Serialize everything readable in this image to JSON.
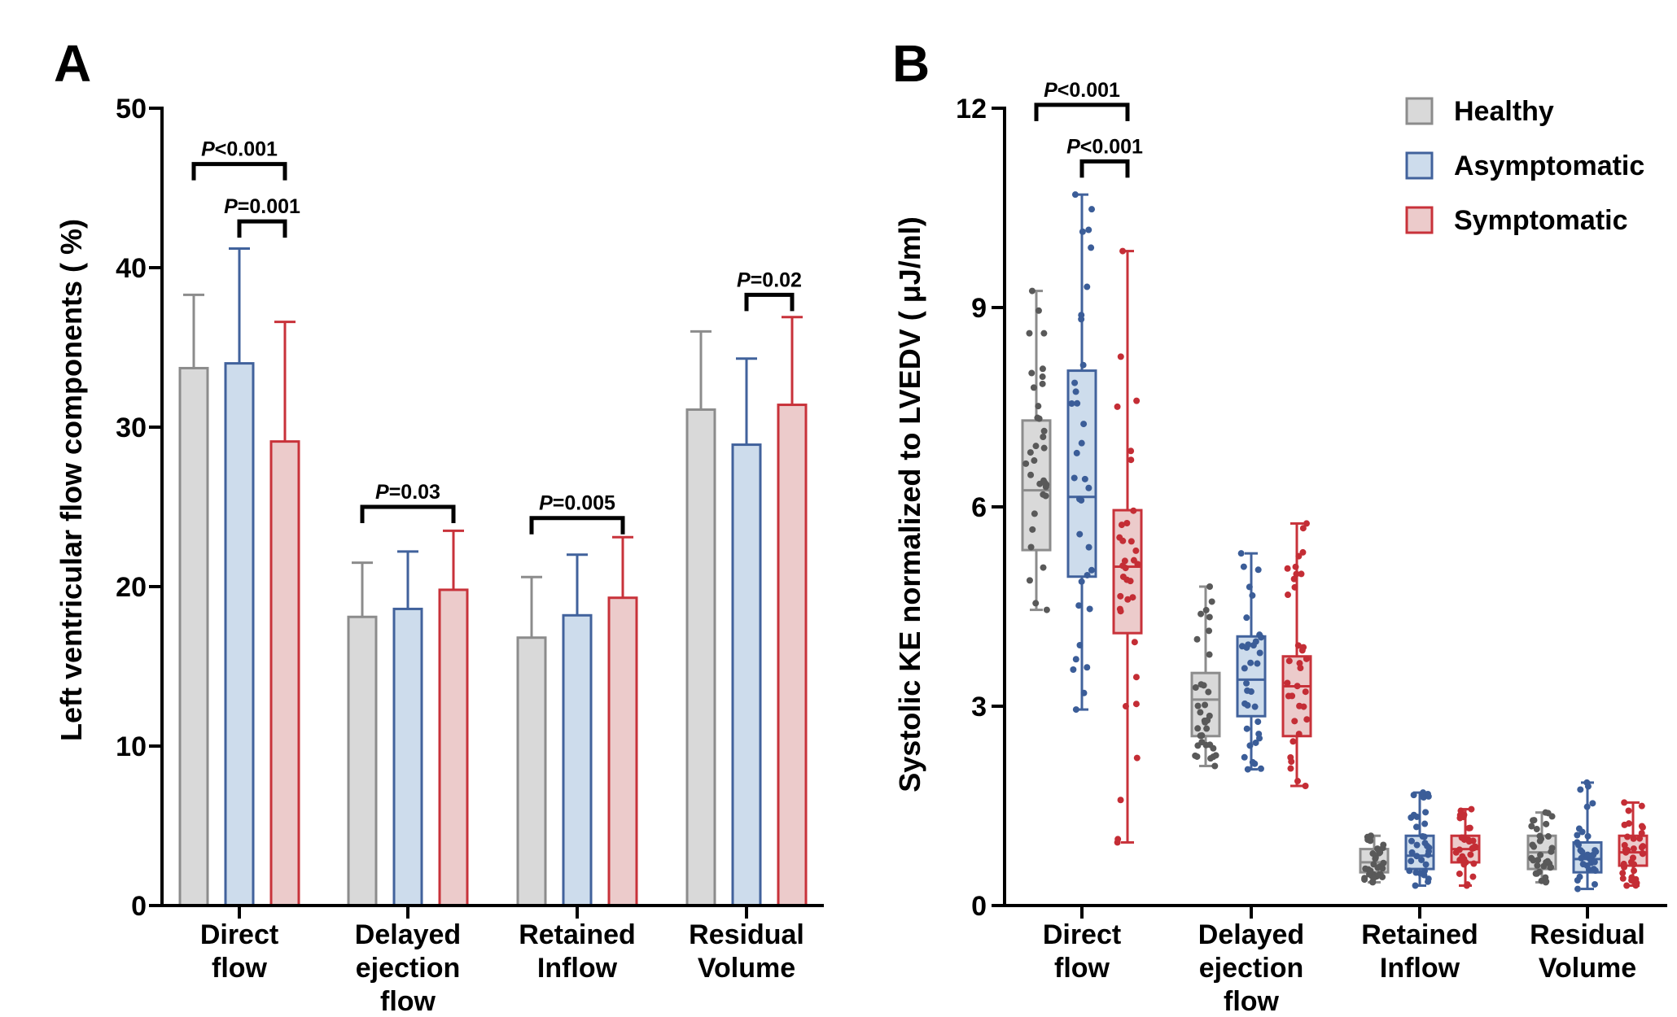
{
  "panels": {
    "a_letter": "A",
    "b_letter": "B"
  },
  "legend": {
    "healthy": "Healthy",
    "asymptomatic": "Asymptomatic",
    "symptomatic": "Symptomatic"
  },
  "colors": {
    "healthy_fill": "#d9d9d9",
    "healthy_stroke": "#8c8c8c",
    "healthy_dot": "#595959",
    "asymptomatic_fill": "#cddcec",
    "asymptomatic_stroke": "#41629c",
    "asymptomatic_dot": "#3b5d98",
    "symptomatic_fill": "#eccbcb",
    "symptomatic_stroke": "#c8323a",
    "symptomatic_dot": "#c42d35"
  },
  "chart_data": [
    {
      "type": "bar",
      "panel": "A",
      "ylabel": "Left ventricular flow components ( %)",
      "ylim": [
        0,
        50
      ],
      "yticks": [
        "0",
        "10",
        "20",
        "30",
        "40",
        "50"
      ],
      "categories": [
        [
          "Direct",
          "flow"
        ],
        [
          "Delayed",
          "ejection",
          "flow"
        ],
        [
          "Retained",
          "Inflow"
        ],
        [
          "Residual",
          "Volume"
        ]
      ],
      "series": [
        {
          "name": "Healthy",
          "values": [
            33.7,
            18.1,
            16.8,
            31.1
          ],
          "error_upper": [
            38.3,
            21.5,
            20.6,
            36.0
          ]
        },
        {
          "name": "Asymptomatic",
          "values": [
            34.0,
            18.6,
            18.2,
            28.9
          ],
          "error_upper": [
            41.2,
            22.2,
            22.0,
            34.3
          ]
        },
        {
          "name": "Symptomatic",
          "values": [
            29.1,
            19.8,
            19.3,
            31.4
          ],
          "error_upper": [
            36.6,
            23.5,
            23.1,
            36.9
          ]
        }
      ],
      "comparisons": [
        {
          "category": 0,
          "from": 0,
          "to": 2,
          "y": 46.5,
          "p": "P",
          "text": "<0.001"
        },
        {
          "category": 0,
          "from": 1,
          "to": 2,
          "y": 42.9,
          "p": "P",
          "text": "=0.001"
        },
        {
          "category": 1,
          "from": 0,
          "to": 2,
          "y": 25.0,
          "p": "P",
          "text": "=0.03"
        },
        {
          "category": 2,
          "from": 0,
          "to": 2,
          "y": 24.3,
          "p": "P",
          "text": "=0.005"
        },
        {
          "category": 3,
          "from": 1,
          "to": 2,
          "y": 38.3,
          "p": "P",
          "text": "=0.02"
        }
      ]
    },
    {
      "type": "box",
      "panel": "B",
      "ylabel": "Systolic KE normalized to LVEDV ( μJ/ml)",
      "ylim": [
        0,
        12
      ],
      "yticks": [
        "0",
        "3",
        "6",
        "9",
        "12"
      ],
      "categories": [
        [
          "Direct",
          "flow"
        ],
        [
          "Delayed",
          "ejection",
          "flow"
        ],
        [
          "Retained",
          "Inflow"
        ],
        [
          "Residual",
          "Volume"
        ]
      ],
      "series": [
        {
          "name": "Healthy",
          "boxes": [
            {
              "min": 4.45,
              "q1": 5.35,
              "median": 6.25,
              "q3": 7.3,
              "max": 9.25
            },
            {
              "min": 2.1,
              "q1": 2.55,
              "median": 3.1,
              "q3": 3.5,
              "max": 4.8
            },
            {
              "min": 0.35,
              "q1": 0.5,
              "median": 0.65,
              "q3": 0.85,
              "max": 1.05
            },
            {
              "min": 0.35,
              "q1": 0.55,
              "median": 0.8,
              "q3": 1.05,
              "max": 1.4
            }
          ]
        },
        {
          "name": "Asymptomatic",
          "boxes": [
            {
              "min": 2.95,
              "q1": 4.95,
              "median": 6.15,
              "q3": 8.05,
              "max": 10.7
            },
            {
              "min": 2.05,
              "q1": 2.85,
              "median": 3.4,
              "q3": 4.05,
              "max": 5.3
            },
            {
              "min": 0.3,
              "q1": 0.55,
              "median": 0.75,
              "q3": 1.05,
              "max": 1.7
            },
            {
              "min": 0.25,
              "q1": 0.5,
              "median": 0.7,
              "q3": 0.95,
              "max": 1.85
            }
          ]
        },
        {
          "name": "Symptomatic",
          "boxes": [
            {
              "min": 0.95,
              "q1": 4.1,
              "median": 5.1,
              "q3": 5.95,
              "max": 9.85
            },
            {
              "min": 1.8,
              "q1": 2.55,
              "median": 3.3,
              "q3": 3.75,
              "max": 5.75
            },
            {
              "min": 0.3,
              "q1": 0.65,
              "median": 0.85,
              "q3": 1.05,
              "max": 1.45
            },
            {
              "min": 0.3,
              "q1": 0.6,
              "median": 0.8,
              "q3": 1.05,
              "max": 1.55
            }
          ]
        }
      ],
      "comparisons": [
        {
          "category": 0,
          "from": 0,
          "to": 2,
          "y": 12.05,
          "p": "P",
          "text": "<0.001"
        },
        {
          "category": 0,
          "from": 1,
          "to": 2,
          "y": 11.2,
          "p": "P",
          "text": "<0.001"
        }
      ]
    }
  ]
}
